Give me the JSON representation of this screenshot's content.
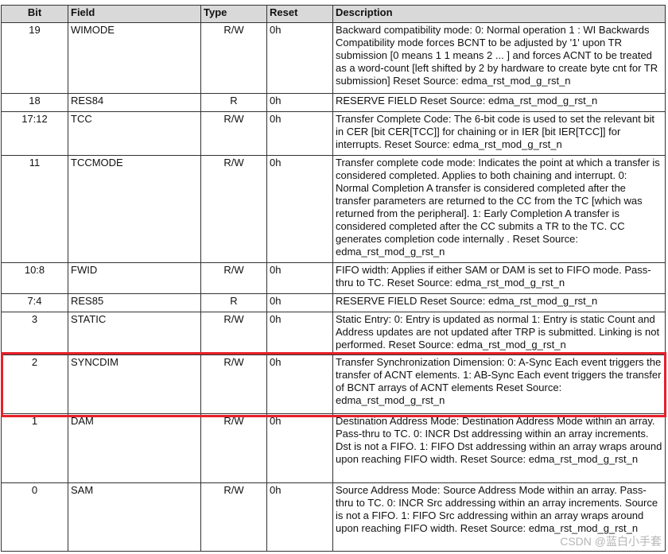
{
  "table": {
    "headers": [
      "Bit",
      "Field",
      "Type",
      "Reset",
      "Description"
    ],
    "rows": [
      {
        "bit": "19",
        "field": "WIMODE",
        "type": "R/W",
        "reset": "0h",
        "description": "Backward compatibility mode: 0: Normal operation 1 : WI Backwards Compatibility mode forces BCNT to be adjusted by '1' upon TR submission [0 means 1 1 means 2 ... ] and forces ACNT to be treated as a word-count [left shifted by 2 by hardware to create byte cnt for TR submission] Reset Source: edma_rst_mod_g_rst_n"
      },
      {
        "bit": "18",
        "field": "RES84",
        "type": "R",
        "reset": "0h",
        "description": "RESERVE FIELD Reset Source: edma_rst_mod_g_rst_n"
      },
      {
        "bit": "17:12",
        "field": "TCC",
        "type": "R/W",
        "reset": "0h",
        "description": "Transfer Complete Code: The 6-bit code is used to set the relevant bit in CER [bit CER[TCC]] for chaining or in IER [bit IER[TCC]] for interrupts. Reset Source: edma_rst_mod_g_rst_n"
      },
      {
        "bit": "11",
        "field": "TCCMODE",
        "type": "R/W",
        "reset": "0h",
        "description": "Transfer complete code mode: Indicates the point at which a transfer is considered completed. Applies to both chaining and interrupt. 0: Normal Completion A transfer is considered completed after the transfer parameters are returned to the CC from the TC [which was returned from the peripheral]. 1: Early Completion A transfer is considered completed after the CC submits a TR to the TC. CC generates completion code internally . Reset Source: edma_rst_mod_g_rst_n"
      },
      {
        "bit": "10:8",
        "field": "FWID",
        "type": "R/W",
        "reset": "0h",
        "description": "FIFO width: Applies if either SAM or DAM is set to FIFO mode. Pass-thru to TC. Reset Source: edma_rst_mod_g_rst_n"
      },
      {
        "bit": "7:4",
        "field": "RES85",
        "type": "R",
        "reset": "0h",
        "description": "RESERVE FIELD Reset Source: edma_rst_mod_g_rst_n"
      },
      {
        "bit": "3",
        "field": "STATIC",
        "type": "R/W",
        "reset": "0h",
        "description": "Static Entry: 0: Entry is updated as normal 1: Entry is static Count and Address updates are not updated after TRP is submitted. Linking is not performed. Reset Source: edma_rst_mod_g_rst_n"
      },
      {
        "bit": "2",
        "field": "SYNCDIM",
        "type": "R/W",
        "reset": "0h",
        "description": "Transfer Synchronization Dimension: 0: A-Sync Each event triggers the transfer of ACNT elements. 1: AB-Sync Each event triggers the transfer of BCNT arrays of ACNT elements Reset Source: edma_rst_mod_g_rst_n"
      },
      {
        "bit": "1",
        "field": "DAM",
        "type": "R/W",
        "reset": "0h",
        "description": "Destination Address Mode: Destination Address Mode within an array. Pass-thru to TC. 0: INCR Dst addressing within an array increments. Dst is not a FIFO. 1: FIFO Dst addressing within an array wraps around upon reaching FIFO width. Reset Source: edma_rst_mod_g_rst_n"
      },
      {
        "bit": "0",
        "field": "SAM",
        "type": "R/W",
        "reset": "0h",
        "description": "Source Address Mode: Source Address Mode within an array. Pass-thru to TC. 0: INCR Src addressing within an array increments. Source is not a FIFO. 1: FIFO Src addressing within an array wraps around upon reaching FIFO width. Reset Source: edma_rst_mod_g_rst_n"
      }
    ]
  },
  "highlight": {
    "row_bit": "2",
    "color": "#e8202a"
  },
  "watermark": "CSDN @蓝白小手套"
}
